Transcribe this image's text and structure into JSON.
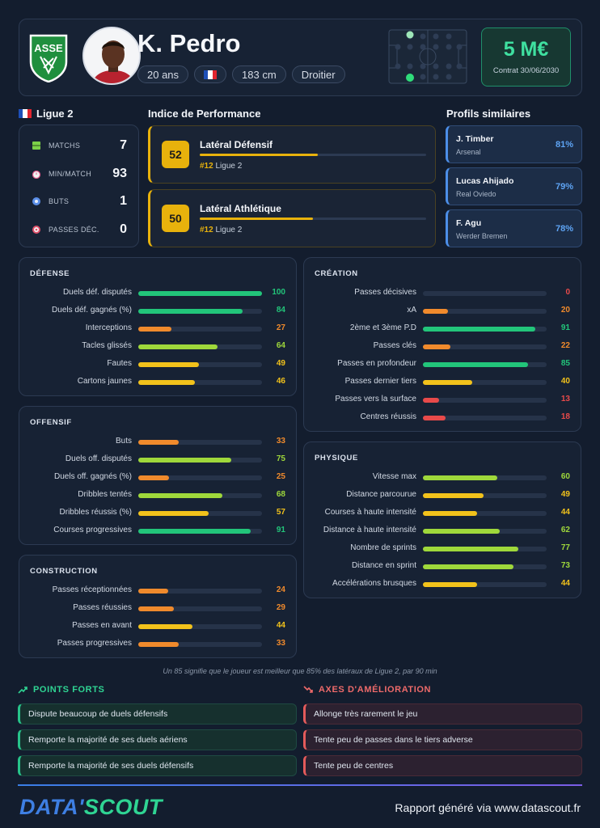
{
  "player": {
    "name": "K. Pedro",
    "age": "20 ans",
    "height": "183 cm",
    "foot": "Droitier",
    "club_logo_text": "ASSE",
    "market_value": "5 M€",
    "contract": "Contrat 30/06/2030"
  },
  "league": {
    "name": "Ligue 2",
    "stats": [
      {
        "label": "MATCHS",
        "value": "7",
        "icon": "pitch-icon",
        "color": "#7bd048"
      },
      {
        "label": "MIN/MATCH",
        "value": "93",
        "icon": "stopwatch-icon",
        "color": "#e25a8a"
      },
      {
        "label": "BUTS",
        "value": "1",
        "icon": "ball-icon",
        "color": "#5b8fe8"
      },
      {
        "label": "PASSES DÉC.",
        "value": "0",
        "icon": "target-icon",
        "color": "#e0506a"
      }
    ]
  },
  "performance": {
    "title": "Indice de Performance",
    "items": [
      {
        "score": "52",
        "role": "Latéral Défensif",
        "rank": "#12",
        "league": "Ligue 2",
        "fill": 52
      },
      {
        "score": "50",
        "role": "Latéral Athlétique",
        "rank": "#12",
        "league": "Ligue 2",
        "fill": 50
      }
    ]
  },
  "similar": {
    "title": "Profils similaires",
    "items": [
      {
        "name": "J. Timber",
        "club": "Arsenal",
        "pct": "81%"
      },
      {
        "name": "Lucas Ahijado",
        "club": "Real Oviedo",
        "pct": "79%"
      },
      {
        "name": "F. Agu",
        "club": "Werder Bremen",
        "pct": "78%"
      }
    ]
  },
  "colors": {
    "high": "#22c57a",
    "good": "#9fd83b",
    "mid": "#f2c21b",
    "low": "#f08a2c",
    "bad": "#e84a4a"
  },
  "groups": {
    "defense": {
      "title": "DÉFENSE",
      "rows": [
        {
          "label": "Duels déf. disputés",
          "value": 100
        },
        {
          "label": "Duels déf. gagnés (%)",
          "value": 84
        },
        {
          "label": "Interceptions",
          "value": 27
        },
        {
          "label": "Tacles glissés",
          "value": 64
        },
        {
          "label": "Fautes",
          "value": 49
        },
        {
          "label": "Cartons jaunes",
          "value": 46
        }
      ]
    },
    "offensif": {
      "title": "OFFENSIF",
      "rows": [
        {
          "label": "Buts",
          "value": 33
        },
        {
          "label": "Duels off. disputés",
          "value": 75
        },
        {
          "label": "Duels off. gagnés (%)",
          "value": 25
        },
        {
          "label": "Dribbles tentés",
          "value": 68
        },
        {
          "label": "Dribbles réussis (%)",
          "value": 57
        },
        {
          "label": "Courses progressives",
          "value": 91
        }
      ]
    },
    "construction": {
      "title": "CONSTRUCTION",
      "rows": [
        {
          "label": "Passes réceptionnées",
          "value": 24
        },
        {
          "label": "Passes réussies",
          "value": 29
        },
        {
          "label": "Passes en avant",
          "value": 44
        },
        {
          "label": "Passes progressives",
          "value": 33
        }
      ]
    },
    "creation": {
      "title": "CRÉATION",
      "rows": [
        {
          "label": "Passes décisives",
          "value": 0
        },
        {
          "label": "xA",
          "value": 20
        },
        {
          "label": "2ème et 3ème P.D",
          "value": 91
        },
        {
          "label": "Passes clés",
          "value": 22
        },
        {
          "label": "Passes en profondeur",
          "value": 85
        },
        {
          "label": "Passes dernier tiers",
          "value": 40
        },
        {
          "label": "Passes vers la surface",
          "value": 13
        },
        {
          "label": "Centres réussis",
          "value": 18
        }
      ]
    },
    "physique": {
      "title": "PHYSIQUE",
      "rows": [
        {
          "label": "Vitesse max",
          "value": 60
        },
        {
          "label": "Distance parcourue",
          "value": 49
        },
        {
          "label": "Courses à haute intensité",
          "value": 44
        },
        {
          "label": "Distance à haute intensité",
          "value": 62
        },
        {
          "label": "Nombre de sprints",
          "value": 77
        },
        {
          "label": "Distance en sprint",
          "value": 73
        },
        {
          "label": "Accélérations brusques",
          "value": 44
        }
      ]
    }
  },
  "footnote": "Un 85 signifie que le joueur est meilleur que 85% des latéraux de Ligue 2, par 90 min",
  "strengths": {
    "title": "POINTS FORTS",
    "items": [
      "Dispute beaucoup de duels défensifs",
      "Remporte la majorité de ses duels aériens",
      "Remporte la majorité de ses duels défensifs"
    ]
  },
  "weaknesses": {
    "title": "AXES D'AMÉLIORATION",
    "items": [
      "Allonge très rarement le jeu",
      "Tente peu de passes dans le tiers adverse",
      "Tente peu de centres"
    ]
  },
  "footer": {
    "logo_left": "DATA'",
    "logo_right": "SCOUT",
    "report": "Rapport généré via www.datascout.fr"
  }
}
